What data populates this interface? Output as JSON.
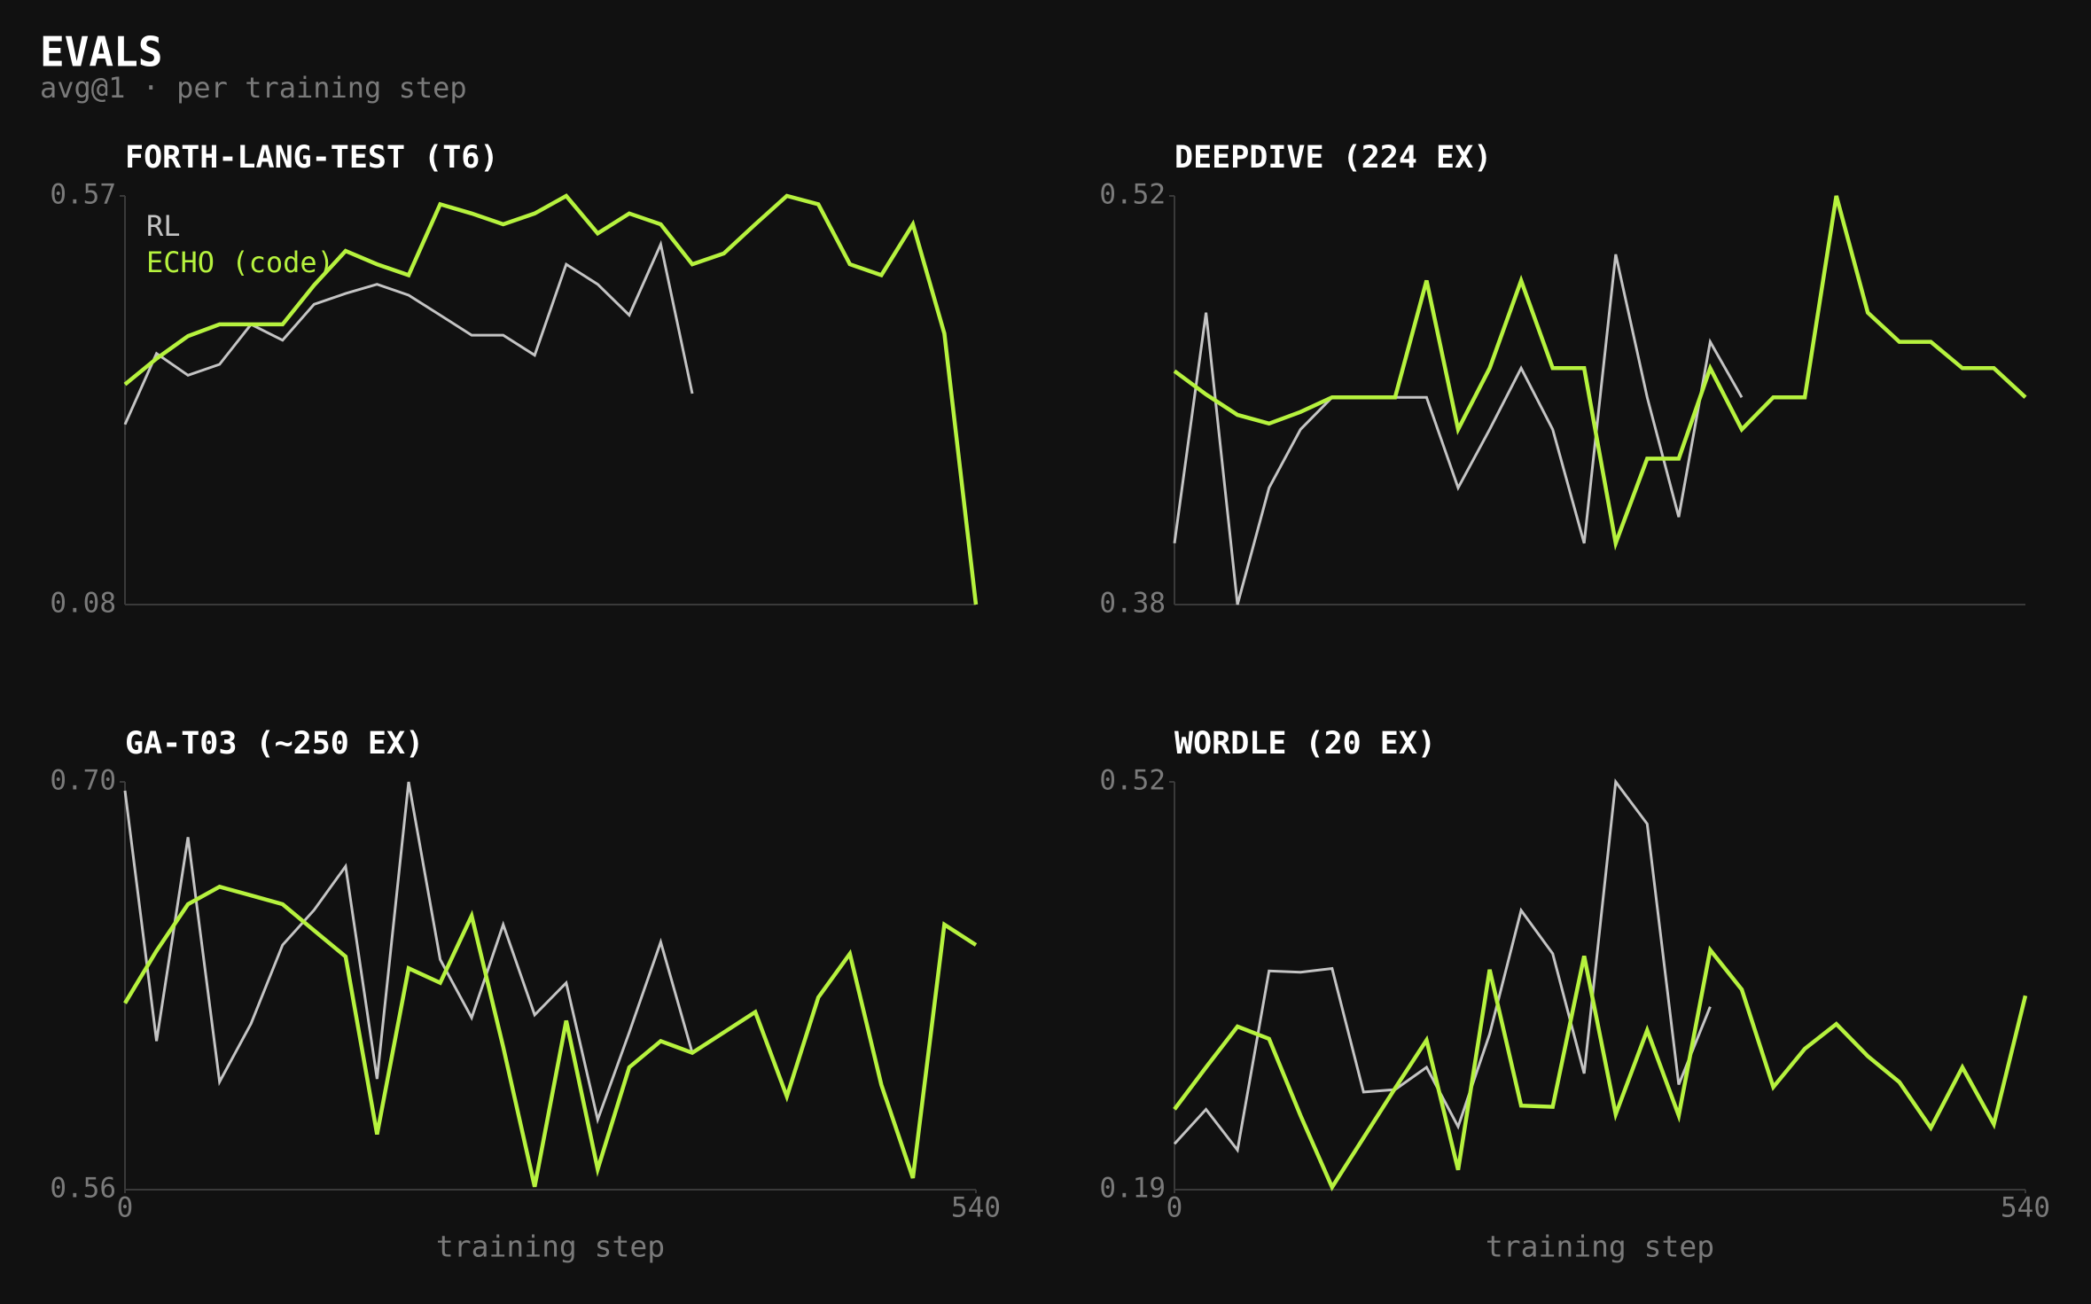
{
  "header": {
    "title": "EVALS",
    "subtitle": "avg@1 · per training step"
  },
  "chart_data": [
    {
      "type": "line",
      "title": "FORTH-LANG-TEST (T6)",
      "legend": "upper left",
      "x": [
        0,
        20,
        40,
        60,
        80,
        100,
        120,
        140,
        160,
        180,
        200,
        220,
        240,
        260,
        280,
        300,
        320,
        340,
        360,
        380,
        400,
        420,
        440,
        460,
        480,
        500,
        520,
        540
      ],
      "xlim": [
        0,
        540
      ],
      "ylim": [
        0.08,
        0.57
      ],
      "yticks": [
        {
          "value": 0.08,
          "label": "0.08"
        },
        {
          "value": 0.57,
          "label": "0.57"
        }
      ],
      "series": [
        {
          "name": "RL",
          "color": "#c4c4c4",
          "values": [
            0.296,
            0.381,
            0.355,
            0.368,
            0.416,
            0.397,
            0.44,
            0.453,
            0.464,
            0.451,
            0.427,
            0.403,
            0.403,
            0.379,
            0.488,
            0.464,
            0.427,
            0.512,
            0.333,
            null,
            null,
            null,
            null,
            null,
            null,
            null,
            null,
            null
          ]
        },
        {
          "name": "ECHO (code)",
          "color": "#b6f23e",
          "values": [
            0.344,
            0.375,
            0.402,
            0.416,
            0.416,
            0.416,
            0.463,
            0.504,
            0.488,
            0.475,
            0.56,
            0.549,
            0.536,
            0.549,
            0.57,
            0.525,
            0.549,
            0.536,
            0.488,
            0.501,
            0.536,
            0.57,
            0.56,
            0.488,
            0.475,
            0.536,
            0.405,
            0.08
          ]
        }
      ]
    },
    {
      "type": "line",
      "title": "DEEPDIVE (224 EX)",
      "x": [
        0,
        20,
        40,
        60,
        80,
        100,
        120,
        140,
        160,
        180,
        200,
        220,
        240,
        260,
        280,
        300,
        320,
        340,
        360,
        380,
        400,
        420,
        440,
        460,
        480,
        500,
        520,
        540
      ],
      "xlim": [
        0,
        540
      ],
      "ylim": [
        0.38,
        0.52
      ],
      "yticks": [
        {
          "value": 0.38,
          "label": "0.38"
        },
        {
          "value": 0.52,
          "label": "0.52"
        }
      ],
      "series": [
        {
          "color": "#c4c4c4",
          "values": [
            0.401,
            0.48,
            0.38,
            0.42,
            0.44,
            0.451,
            0.451,
            0.451,
            0.451,
            0.42,
            0.44,
            0.461,
            0.44,
            0.401,
            0.5,
            0.451,
            0.41,
            0.47,
            0.451,
            null,
            null,
            null,
            null,
            null,
            null,
            null,
            null,
            null
          ]
        },
        {
          "color": "#b6f23e",
          "values": [
            0.46,
            0.452,
            0.445,
            0.442,
            0.446,
            0.451,
            0.451,
            0.451,
            0.491,
            0.44,
            0.461,
            0.491,
            0.461,
            0.461,
            0.401,
            0.43,
            0.43,
            0.461,
            0.44,
            0.451,
            0.451,
            0.52,
            0.48,
            0.47,
            0.47,
            0.461,
            0.461,
            0.451
          ]
        }
      ]
    },
    {
      "type": "line",
      "title": "GA-T03 (~250 EX)",
      "xlabel": "training step",
      "x": [
        0,
        20,
        40,
        60,
        80,
        100,
        120,
        140,
        160,
        180,
        200,
        220,
        240,
        260,
        280,
        300,
        320,
        340,
        360,
        380,
        400,
        420,
        440,
        460,
        480,
        500,
        520,
        540
      ],
      "xlim": [
        0,
        540
      ],
      "xticks": [
        0,
        540
      ],
      "ylim": [
        0.56,
        0.7
      ],
      "yticks": [
        {
          "value": 0.56,
          "label": "0.56"
        },
        {
          "value": 0.7,
          "label": "0.70"
        }
      ],
      "series": [
        {
          "color": "#c4c4c4",
          "values": [
            0.697,
            0.611,
            0.681,
            0.597,
            0.617,
            0.644,
            0.656,
            0.671,
            0.598,
            0.7,
            0.639,
            0.619,
            0.651,
            0.62,
            0.631,
            0.584,
            0.614,
            0.645,
            0.607,
            null,
            null,
            null,
            null,
            null,
            null,
            null,
            null,
            null
          ]
        },
        {
          "color": "#b6f23e",
          "values": [
            0.624,
            0.642,
            0.658,
            0.664,
            0.661,
            0.658,
            0.649,
            0.64,
            0.579,
            0.636,
            0.631,
            0.654,
            0.609,
            0.561,
            0.618,
            0.567,
            0.602,
            0.611,
            0.607,
            0.614,
            0.621,
            0.592,
            0.626,
            0.641,
            0.596,
            0.564,
            0.651,
            0.644
          ]
        }
      ]
    },
    {
      "type": "line",
      "title": "WORDLE (20 EX)",
      "xlabel": "training step",
      "x": [
        0,
        20,
        40,
        60,
        80,
        100,
        120,
        140,
        160,
        180,
        200,
        220,
        240,
        260,
        280,
        300,
        320,
        340,
        360,
        380,
        400,
        420,
        440,
        460,
        480,
        500,
        520,
        540
      ],
      "xlim": [
        0,
        540
      ],
      "xticks": [
        0,
        540
      ],
      "ylim": [
        0.19,
        0.52
      ],
      "yticks": [
        {
          "value": 0.19,
          "label": "0.19"
        },
        {
          "value": 0.52,
          "label": "0.52"
        }
      ],
      "series": [
        {
          "color": "#c4c4c4",
          "values": [
            0.227,
            0.255,
            0.222,
            0.367,
            0.366,
            0.369,
            0.269,
            0.271,
            0.289,
            0.241,
            0.316,
            0.416,
            0.381,
            0.284,
            0.52,
            0.486,
            0.275,
            0.338,
            null,
            null,
            null,
            null,
            null,
            null,
            null,
            null,
            null,
            null
          ]
        },
        {
          "color": "#b6f23e",
          "values": [
            0.255,
            0.289,
            0.322,
            0.312,
            0.25,
            0.192,
            0.232,
            0.272,
            0.311,
            0.206,
            0.368,
            0.258,
            0.257,
            0.379,
            0.251,
            0.319,
            0.25,
            0.384,
            0.352,
            0.273,
            0.304,
            0.324,
            0.298,
            0.277,
            0.24,
            0.289,
            0.243,
            0.347
          ]
        }
      ]
    }
  ]
}
